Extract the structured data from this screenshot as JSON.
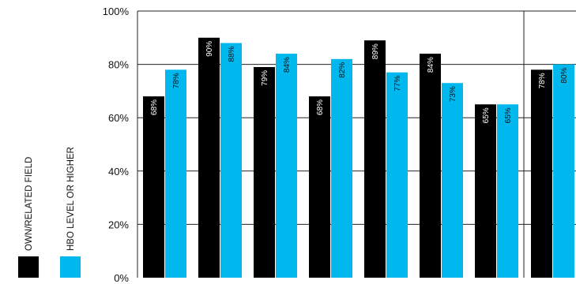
{
  "chart_data": {
    "type": "bar",
    "title": "",
    "xlabel": "",
    "ylabel": "",
    "ylim": [
      0,
      100
    ],
    "y_ticks": [
      "0%",
      "20%",
      "40%",
      "60%",
      "80%",
      "100%"
    ],
    "categories": [
      "",
      "",
      "",
      "",
      "",
      "",
      "",
      ""
    ],
    "series": [
      {
        "name": "OWN/RELATED FIELD",
        "color": "#000000",
        "label_color": "#ffffff",
        "values": [
          68,
          90,
          79,
          68,
          89,
          84,
          65,
          78
        ],
        "labels": [
          "68%",
          "90%",
          "79%",
          "68%",
          "89%",
          "84%",
          "65%",
          "78%"
        ]
      },
      {
        "name": "HBO LEVEL OR HIGHER",
        "color": "#00b8ee",
        "label_color": "#111111",
        "values": [
          78,
          88,
          84,
          82,
          77,
          73,
          65,
          80
        ],
        "labels": [
          "78%",
          "88%",
          "84%",
          "82%",
          "77%",
          "73%",
          "65%",
          "80%"
        ]
      }
    ],
    "grid": true,
    "legend_position": "left"
  }
}
